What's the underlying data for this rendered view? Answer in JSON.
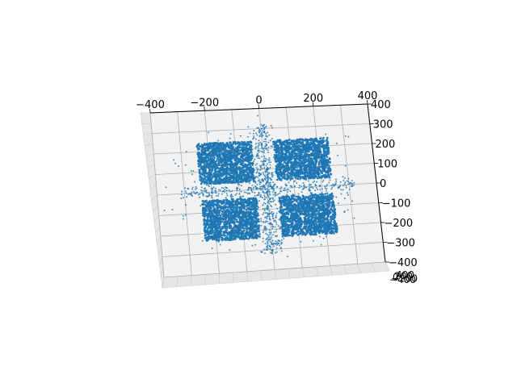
{
  "chart_data": {
    "type": "scatter",
    "projection": "3d",
    "title": "",
    "xlabel": "",
    "ylabel": "",
    "zlabel": "",
    "xlim": [
      -400,
      400
    ],
    "ylim": [
      -400,
      400
    ],
    "grid": true,
    "marker_color": "#1f77b4",
    "x_ticks": [
      "−400",
      "−200",
      "0",
      "200",
      "400"
    ],
    "y_ticks": [
      "400",
      "300",
      "200",
      "100",
      "0",
      "−100",
      "−200",
      "−300",
      "−400"
    ],
    "z_ticks": [
      "−400",
      "−200",
      "0",
      "200",
      "400"
    ],
    "clusters": [
      {
        "name": "top-left square",
        "x_range": [
          -240,
          -40
        ],
        "y_range": [
          40,
          240
        ],
        "density": "dense"
      },
      {
        "name": "top-right square",
        "x_range": [
          40,
          240
        ],
        "y_range": [
          40,
          240
        ],
        "density": "dense"
      },
      {
        "name": "bottom-left square",
        "x_range": [
          -240,
          -40
        ],
        "y_range": [
          -240,
          -40
        ],
        "density": "dense"
      },
      {
        "name": "bottom-right square",
        "x_range": [
          40,
          240
        ],
        "y_range": [
          -240,
          -40
        ],
        "density": "dense"
      },
      {
        "name": "central cross",
        "x_range": [
          -40,
          40
        ],
        "y_range": [
          -320,
          320
        ],
        "density": "sparse"
      },
      {
        "name": "scattered outliers",
        "x_range": [
          -380,
          380
        ],
        "y_range": [
          -380,
          380
        ],
        "density": "very sparse"
      }
    ]
  }
}
